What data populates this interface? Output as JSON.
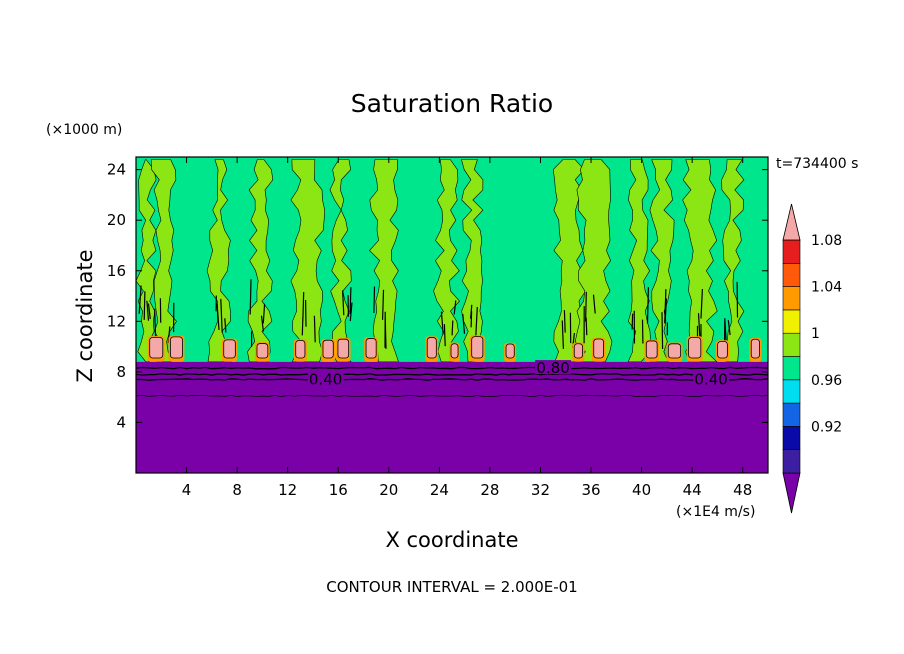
{
  "chart_data": {
    "type": "heatmap",
    "title": "Saturation Ratio",
    "xlabel": "X coordinate",
    "ylabel": "Z coordinate",
    "x_unit": "(×1E4 m/s)",
    "y_unit": "(×1000 m)",
    "time_label": "t=734400 s",
    "footer": "CONTOUR INTERVAL = 2.000E-01",
    "xlim": [
      0,
      50
    ],
    "ylim": [
      0,
      25
    ],
    "xticks": [
      4,
      8,
      12,
      16,
      20,
      24,
      28,
      32,
      36,
      40,
      44,
      48
    ],
    "yticks": [
      4,
      8,
      12,
      16,
      20,
      24
    ],
    "contour_labels": [
      "0.40",
      "0.80",
      "0.40"
    ],
    "levels": [
      0.92,
      0.96,
      1,
      1.04,
      1.08
    ],
    "colorbar_labels": [
      "0.92",
      "0.96",
      "1",
      "1.04",
      "1.08"
    ],
    "colorbar_colors": [
      "#7a00a8",
      "#3c1ea0",
      "#0a0aa8",
      "#1464e6",
      "#00dcf0",
      "#00e68c",
      "#8ce614",
      "#f0f000",
      "#ff9a00",
      "#ff5a0a",
      "#e61e1e",
      "#f4a8a8"
    ],
    "region_colors": {
      "upper_background": "#00e68c",
      "plume": "#8ce614",
      "cloud_top": "#f4a8a8",
      "cloud_edge": "#ff9a00",
      "dry_lower": "#7a00a8"
    },
    "plume_x_positions": [
      0.8,
      2.2,
      6.6,
      9.8,
      13.6,
      16.2,
      19.6,
      24.6,
      26.6,
      34.3,
      36.2,
      39.8,
      41.6,
      44.6,
      47.2
    ],
    "cloud_cells_x": [
      1.6,
      3.2,
      7.4,
      10.0,
      13.0,
      15.2,
      16.4,
      18.6,
      23.4,
      25.2,
      27.0,
      29.6,
      35.0,
      36.6,
      40.8,
      42.6,
      44.2,
      46.4,
      49.0
    ],
    "inversion_z": 8.8,
    "contour_lines_z": [
      8.3,
      7.8,
      7.4,
      6.1
    ]
  }
}
